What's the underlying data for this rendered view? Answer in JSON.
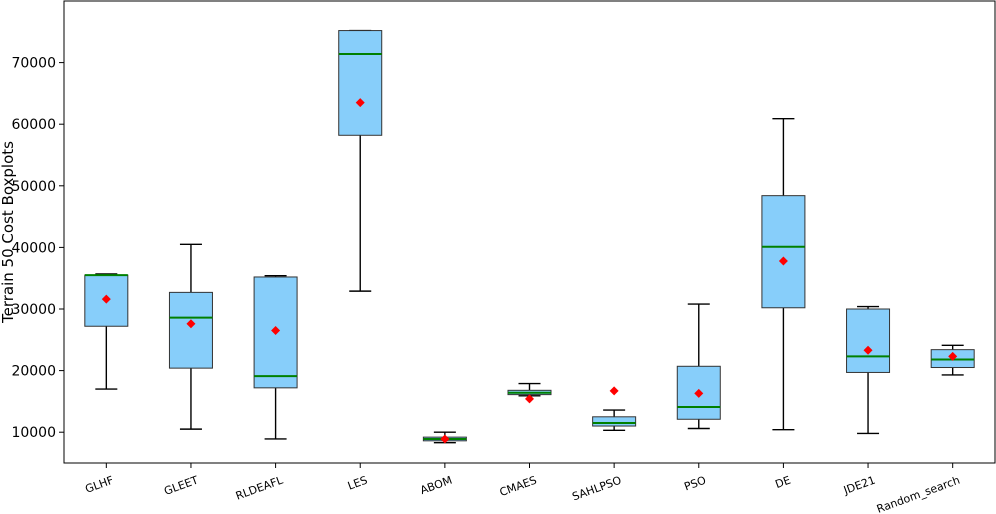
{
  "chart_data": {
    "type": "boxplot",
    "title": "",
    "xlabel": "",
    "ylabel": "Terrain 50 Cost Boxplots",
    "ylim": [
      5000,
      80000
    ],
    "yticks": [
      10000,
      20000,
      30000,
      40000,
      50000,
      60000,
      70000
    ],
    "ytick_labels": [
      "10000",
      "20000",
      "30000",
      "40000",
      "50000",
      "60000",
      "70000"
    ],
    "grid": false,
    "colors": {
      "box_fill": "#87cefa",
      "box_edge": "#333333",
      "median": "#008000",
      "mean": "#ff0000",
      "whisker": "#000000"
    },
    "categories": [
      "GLHF",
      "GLEET",
      "RLDEAFL",
      "LES",
      "ABOM",
      "CMAES",
      "SAHLPSO",
      "PSO",
      "DE",
      "JDE21",
      "Random_search"
    ],
    "boxes": [
      {
        "label": "GLHF",
        "whislo": 17000,
        "q1": 27200,
        "med": 35500,
        "q3": 35500,
        "whishi": 35700,
        "mean": 31600
      },
      {
        "label": "GLEET",
        "whislo": 10500,
        "q1": 20400,
        "med": 28600,
        "q3": 32700,
        "whishi": 40500,
        "mean": 27600
      },
      {
        "label": "RLDEAFL",
        "whislo": 8900,
        "q1": 17200,
        "med": 19100,
        "q3": 35200,
        "whishi": 35400,
        "mean": 26500
      },
      {
        "label": "LES",
        "whislo": 32900,
        "q1": 58200,
        "med": 71400,
        "q3": 75200,
        "whishi": 75200,
        "mean": 63500
      },
      {
        "label": "ABOM",
        "whislo": 8300,
        "q1": 8600,
        "med": 8900,
        "q3": 9200,
        "whishi": 10000,
        "mean": 8900
      },
      {
        "label": "CMAES",
        "whislo": 15900,
        "q1": 16100,
        "med": 16400,
        "q3": 16800,
        "whishi": 17900,
        "mean": 15400
      },
      {
        "label": "SAHLPSO",
        "whislo": 10300,
        "q1": 11000,
        "med": 11500,
        "q3": 12500,
        "whishi": 13600,
        "mean": 16700
      },
      {
        "label": "PSO",
        "whislo": 10600,
        "q1": 12100,
        "med": 14100,
        "q3": 20700,
        "whishi": 30800,
        "mean": 16300
      },
      {
        "label": "DE",
        "whislo": 10400,
        "q1": 30200,
        "med": 40100,
        "q3": 48400,
        "whishi": 60900,
        "mean": 37800
      },
      {
        "label": "JDE21",
        "whislo": 9800,
        "q1": 19700,
        "med": 22300,
        "q3": 30000,
        "whishi": 30400,
        "mean": 23300
      },
      {
        "label": "Random_search",
        "whislo": 19300,
        "q1": 20500,
        "med": 21800,
        "q3": 23400,
        "whishi": 24100,
        "mean": 22300
      }
    ]
  }
}
